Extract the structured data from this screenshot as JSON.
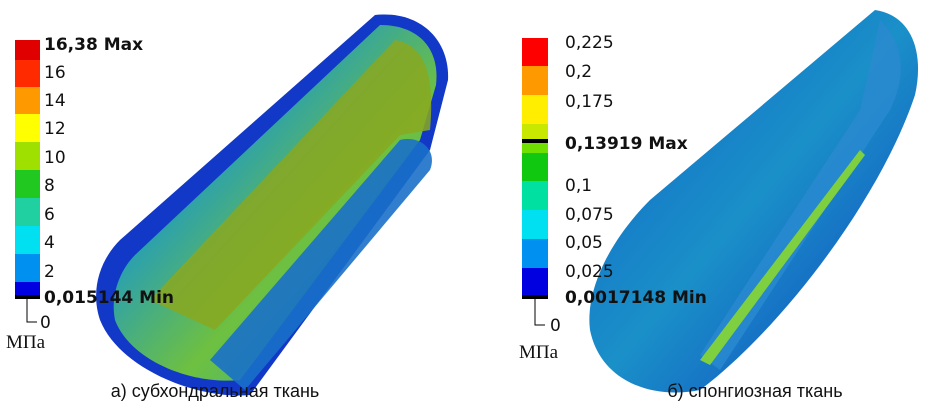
{
  "panels": [
    {
      "legend_labels": [
        "16,38 Max",
        "16",
        "14",
        "12",
        "10",
        "8",
        "6",
        "4",
        "2",
        "0,015144 Min",
        "0"
      ],
      "unit": "МПа",
      "caption": "а) субхондральная ткань"
    },
    {
      "legend_labels": [
        "0,225",
        "0,2",
        "0,175",
        "0,13919 Max",
        "0,1",
        "0,075",
        "0,05",
        "0,025",
        "0,0017148 Min",
        "0"
      ],
      "unit": "МПа",
      "caption": "б) спонгиозная ткань"
    }
  ]
}
